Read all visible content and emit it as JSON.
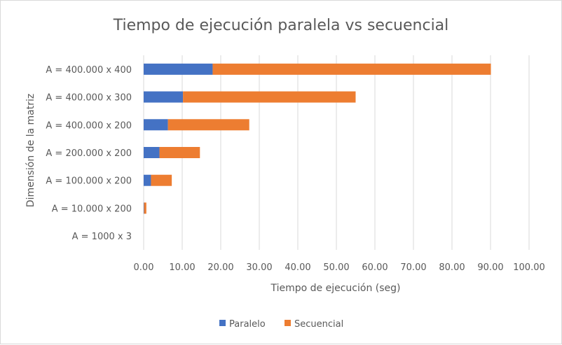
{
  "chart_data": {
    "type": "bar",
    "orientation": "horizontal",
    "stacked": true,
    "title": "Tiempo de ejecución paralela vs secuencial",
    "xlabel": "Tiempo de ejecución (seg)",
    "ylabel": "Dimensión de la matriz",
    "xlim": [
      0,
      100
    ],
    "x_ticks": [
      "0.00",
      "10.00",
      "20.00",
      "30.00",
      "40.00",
      "50.00",
      "60.00",
      "70.00",
      "80.00",
      "90.00",
      "100.00"
    ],
    "grid": "vertical",
    "legend_position": "bottom",
    "categories": [
      "A = 400.000 x 400",
      "A = 400.000 x 300",
      "A = 400.000 x 200",
      "A = 200.000 x 200",
      "A = 100.000 x 200",
      "A = 10.000 x 200",
      "A = 1000 x 3"
    ],
    "series": [
      {
        "name": "Paralelo",
        "color": "#4472c4",
        "values": [
          17.9,
          10.2,
          6.3,
          4.1,
          1.9,
          0.1,
          0.0
        ]
      },
      {
        "name": "Secuencial",
        "color": "#ed7d31",
        "values": [
          72.2,
          44.8,
          21.1,
          10.5,
          5.4,
          0.6,
          0.0
        ]
      }
    ]
  }
}
